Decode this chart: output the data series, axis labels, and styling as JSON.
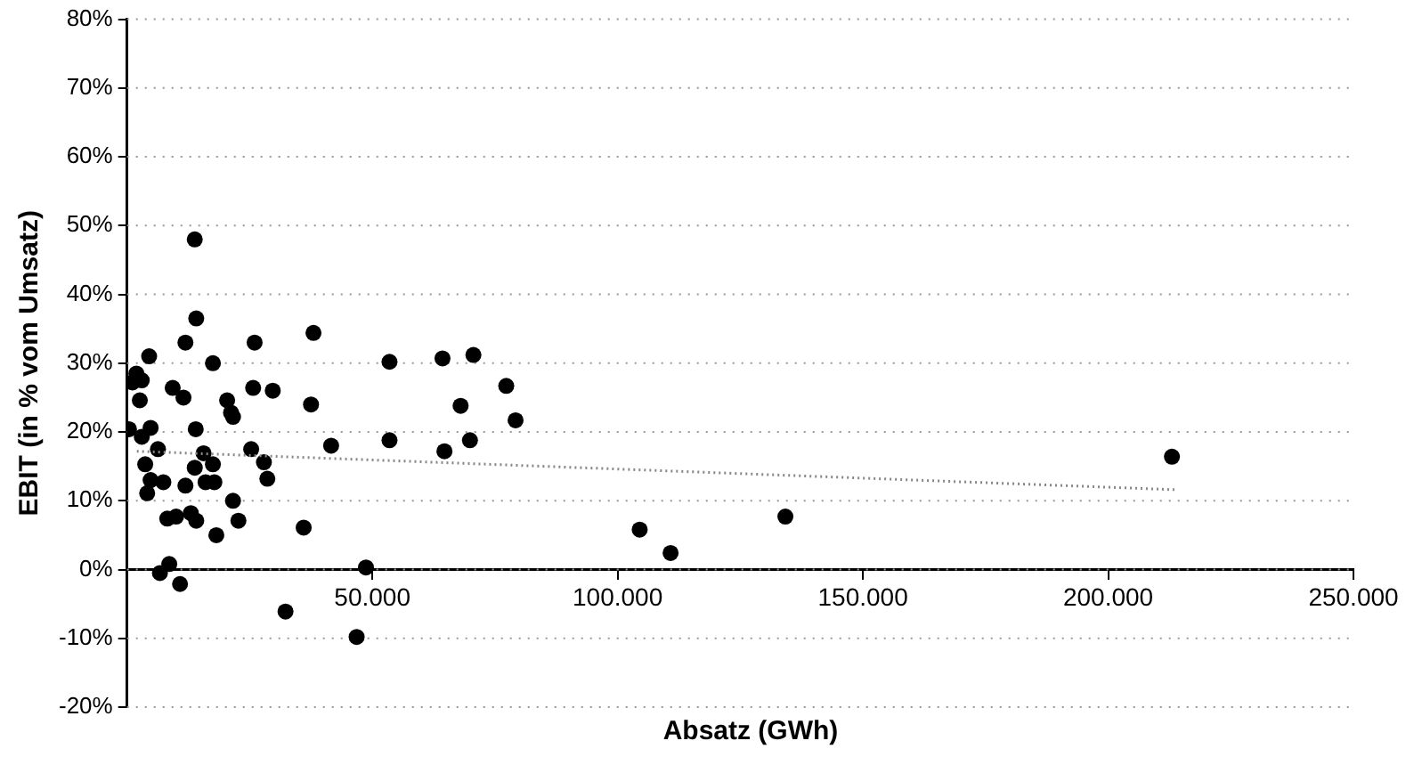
{
  "chart_data": {
    "type": "scatter",
    "xlabel": "Absatz (GWh)",
    "ylabel": "EBIT (in % vom Umsatz)",
    "xlim": [
      0,
      250000
    ],
    "xticks": [
      {
        "value": 0,
        "label": null
      },
      {
        "value": 50000,
        "label": "50.000"
      },
      {
        "value": 100000,
        "label": "100.000"
      },
      {
        "value": 150000,
        "label": "150.000"
      },
      {
        "value": 200000,
        "label": "200.000"
      },
      {
        "value": 250000,
        "label": "250.000"
      }
    ],
    "ylim": [
      -20,
      80
    ],
    "yticks": [
      {
        "value": -20,
        "label": "-20%"
      },
      {
        "value": -10,
        "label": "-10%"
      },
      {
        "value": 0,
        "label": "0%"
      },
      {
        "value": 10,
        "label": "10%"
      },
      {
        "value": 20,
        "label": "20%"
      },
      {
        "value": 30,
        "label": "30%"
      },
      {
        "value": 40,
        "label": "40%"
      },
      {
        "value": 50,
        "label": "50%"
      },
      {
        "value": 60,
        "label": "60%"
      },
      {
        "value": 70,
        "label": "70%"
      },
      {
        "value": 80,
        "label": "80%"
      }
    ],
    "grid": "y",
    "legend": false,
    "marker": "circle",
    "series": [
      {
        "color": "#000000",
        "x": [
          13800,
          14100,
          11900,
          4500,
          17500,
          26000,
          38000,
          1900,
          3000,
          1100,
          2600,
          9300,
          11500,
          20400,
          21200,
          21600,
          25700,
          29700,
          37500,
          400,
          3000,
          4800,
          14000,
          6300,
          41600,
          3700,
          13800,
          15600,
          17500,
          25300,
          27900,
          28600,
          4800,
          7400,
          11900,
          16000,
          17800,
          4100,
          21600,
          8200,
          10000,
          13000,
          14100,
          22700,
          18200,
          36000,
          6700,
          8600,
          10800,
          53500,
          64300,
          70600,
          77300,
          68000,
          79200,
          53500,
          64700,
          69900,
          48700,
          46800,
          32300,
          104500,
          110800,
          134200,
          213000
        ],
        "values": [
          48,
          36.5,
          33,
          31,
          30,
          33,
          34.4,
          28.5,
          27.5,
          27.2,
          24.6,
          26.4,
          25,
          24.6,
          22.8,
          22.2,
          26.4,
          26,
          24,
          20.4,
          19.3,
          20.6,
          20.4,
          17.5,
          18,
          15.3,
          14.8,
          16.9,
          15.3,
          17.5,
          15.6,
          13.2,
          13,
          12.7,
          12.2,
          12.7,
          12.7,
          11.1,
          10,
          7.4,
          7.7,
          8.2,
          7.1,
          7.1,
          5,
          6.1,
          -0.5,
          0.8,
          -2.1,
          30.2,
          30.7,
          31.2,
          26.7,
          23.8,
          21.7,
          18.8,
          17.2,
          18.8,
          0.3,
          -9.8,
          -6.1,
          5.8,
          2.4,
          7.7,
          16.4
        ]
      },
      {
        "type": "line",
        "color": "#888888",
        "marker": "none",
        "line_style": "dotted",
        "x": [
          2000,
          213800
        ],
        "values": [
          17.2,
          11.6
        ]
      }
    ]
  }
}
